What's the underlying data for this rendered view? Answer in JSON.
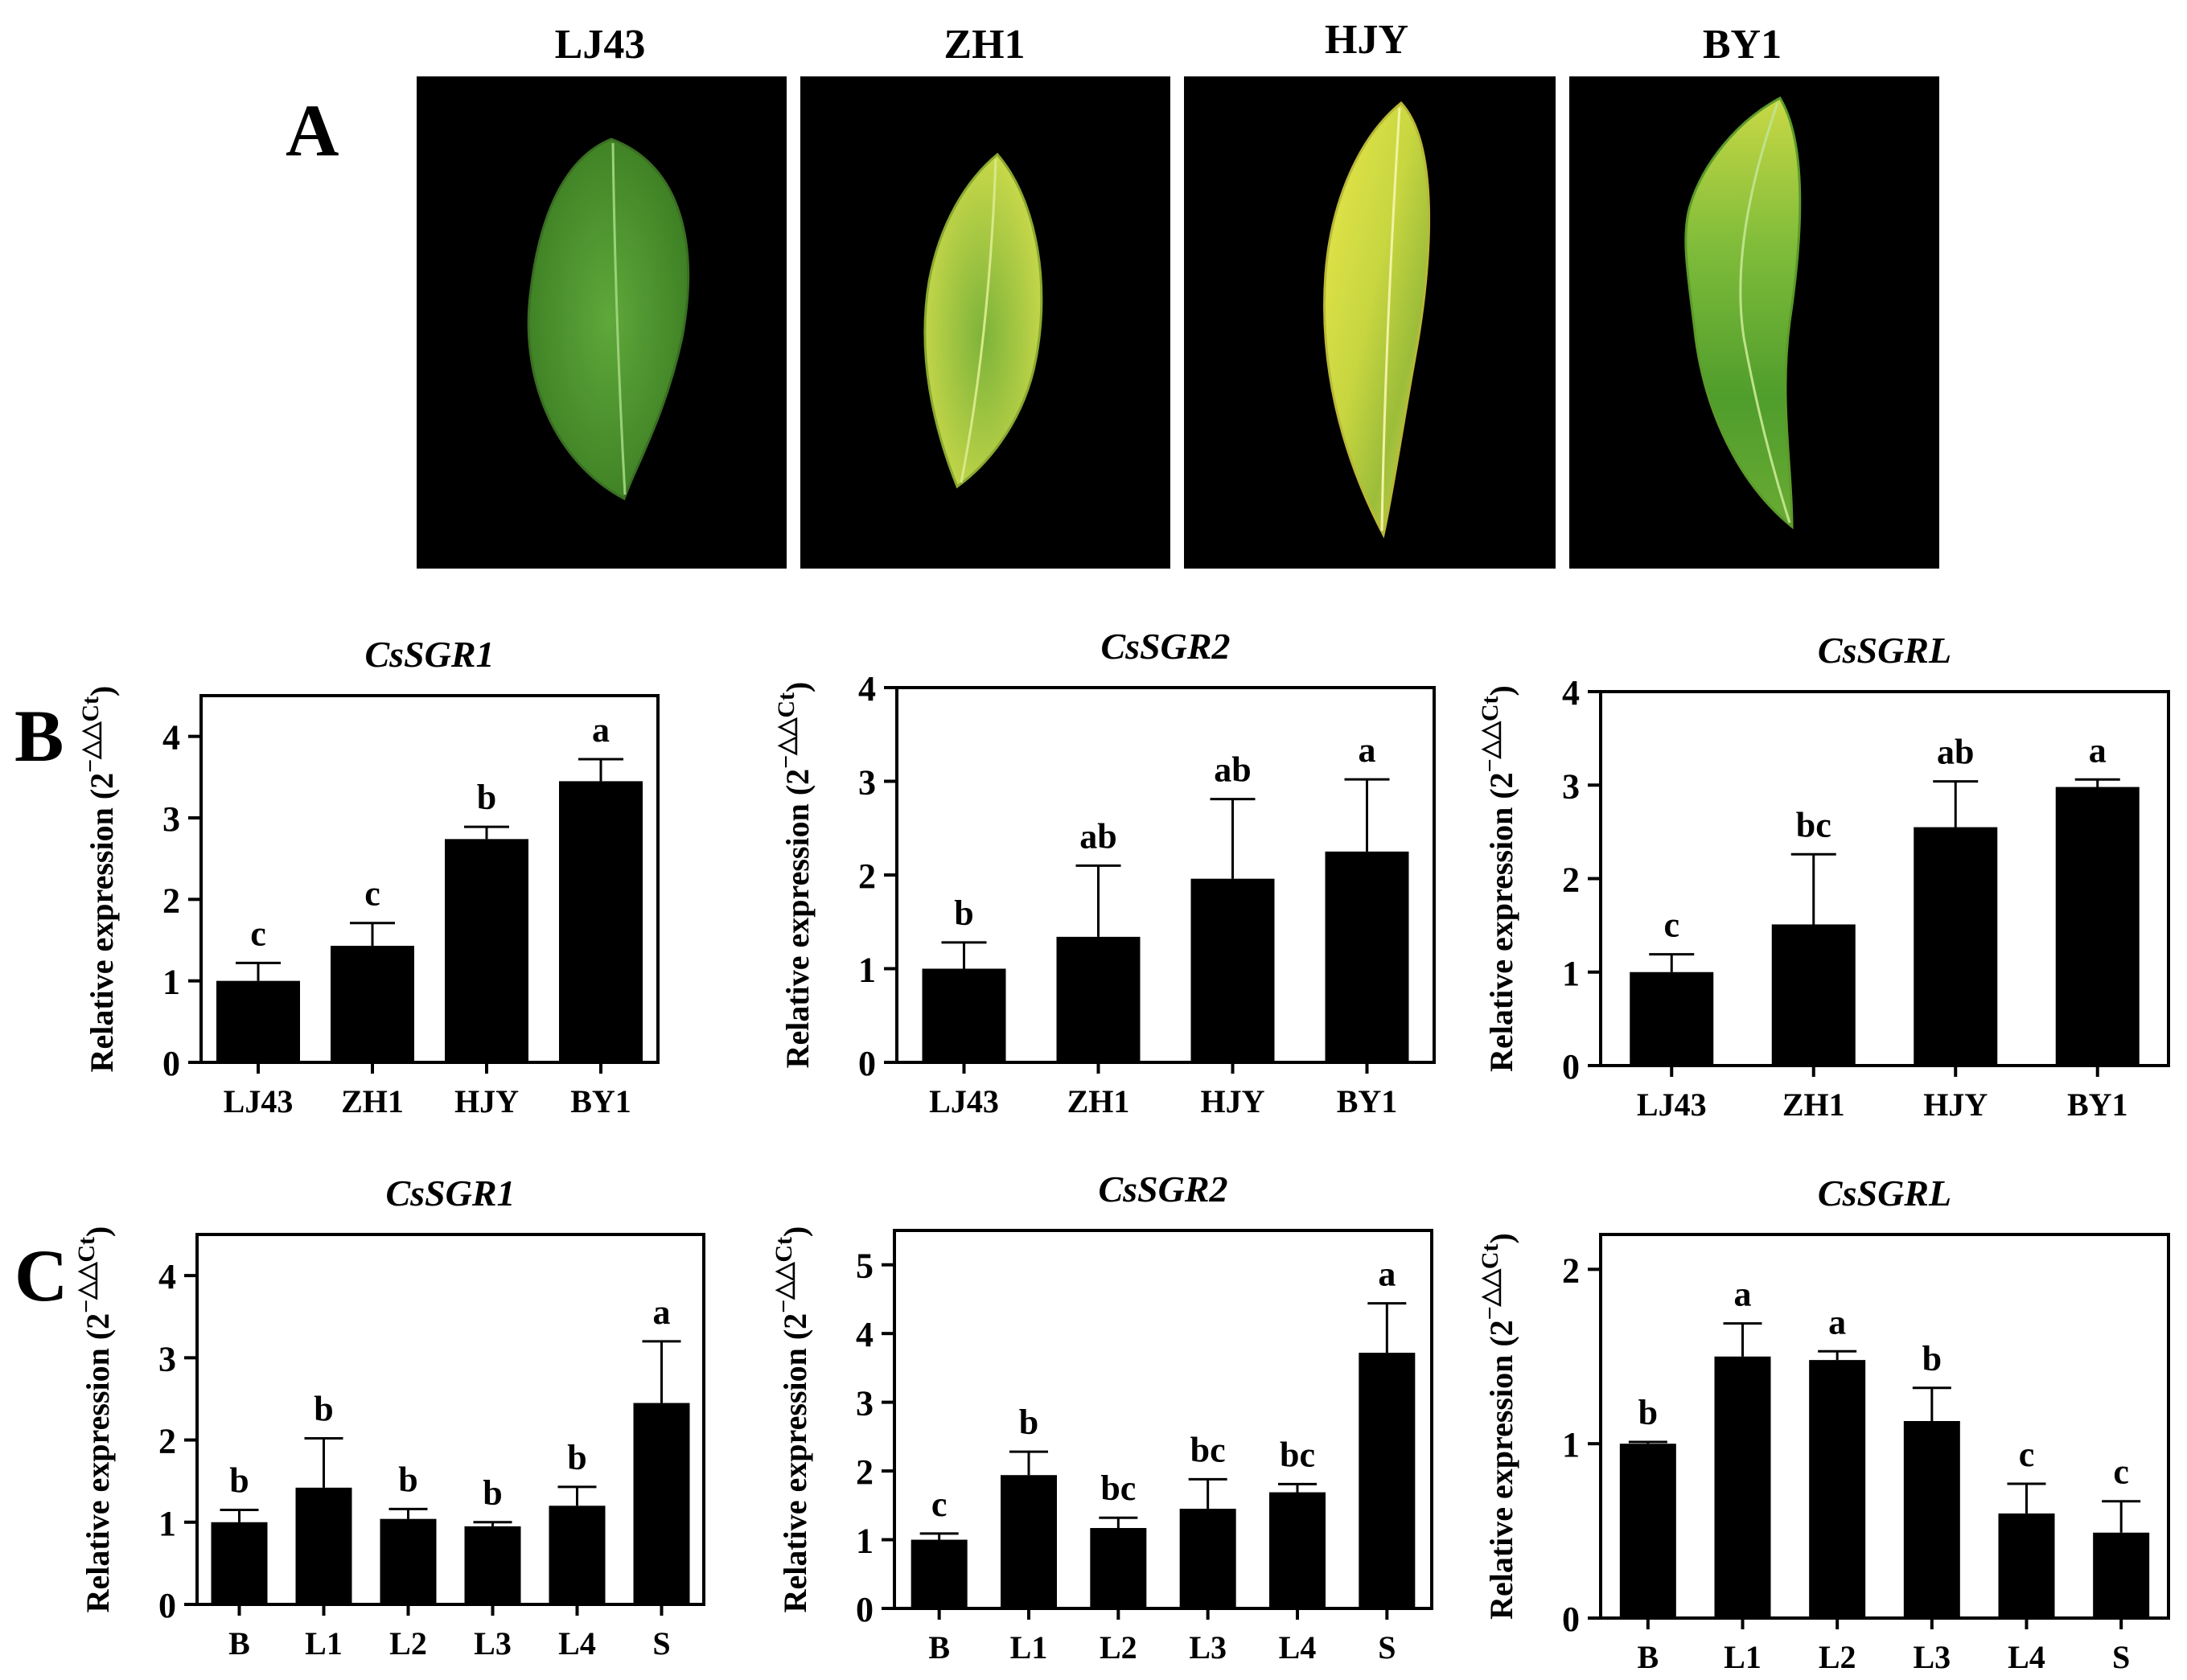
{
  "panel_letters": {
    "a": "A",
    "b": "B",
    "c": "C"
  },
  "panel_a": {
    "photos": [
      {
        "label": "LJ43"
      },
      {
        "label": "ZH1"
      },
      {
        "label": "HJY"
      },
      {
        "label": "BY1"
      }
    ]
  },
  "colors": {
    "bar": "#000000",
    "photo_bg": "#000000",
    "background": "#ffffff",
    "leaf_green": "#4f9a2f",
    "leaf_yellow": "#d8dc3a"
  },
  "chart_data": [
    {
      "id": "B1",
      "type": "bar",
      "title": "CsSGR1",
      "ylabel": "Relative expression (2",
      "ylabel_sup": "−△△Ct",
      "categories": [
        "LJ43",
        "ZH1",
        "HJY",
        "BY1"
      ],
      "values": [
        1.0,
        1.43,
        2.74,
        3.45
      ],
      "errors": [
        0.22,
        0.28,
        0.15,
        0.27
      ],
      "letters": [
        "c",
        "c",
        "b",
        "a"
      ],
      "ylim": [
        0,
        4.5
      ],
      "yticks": [
        0,
        1,
        2,
        3,
        4
      ]
    },
    {
      "id": "B2",
      "type": "bar",
      "title": "CsSGR2",
      "ylabel": "Relative expression (2",
      "ylabel_sup": "−△△Ct",
      "categories": [
        "LJ43",
        "ZH1",
        "HJY",
        "BY1"
      ],
      "values": [
        1.0,
        1.34,
        1.96,
        2.25
      ],
      "errors": [
        0.28,
        0.76,
        0.85,
        0.77
      ],
      "letters": [
        "b",
        "ab",
        "ab",
        "a"
      ],
      "ylim": [
        0,
        4
      ],
      "yticks": [
        0,
        1,
        2,
        3,
        4
      ]
    },
    {
      "id": "B3",
      "type": "bar",
      "title": "CsSGRL",
      "ylabel": "Relative expression (2",
      "ylabel_sup": "−△△Ct",
      "categories": [
        "LJ43",
        "ZH1",
        "HJY",
        "BY1"
      ],
      "values": [
        1.0,
        1.51,
        2.55,
        2.98
      ],
      "errors": [
        0.19,
        0.75,
        0.49,
        0.08
      ],
      "letters": [
        "c",
        "bc",
        "ab",
        "a"
      ],
      "ylim": [
        0,
        4
      ],
      "yticks": [
        0,
        1,
        2,
        3,
        4
      ]
    },
    {
      "id": "C1",
      "type": "bar",
      "title": "CsSGR1",
      "ylabel": "Relative expression (2",
      "ylabel_sup": "−△△Ct",
      "categories": [
        "B",
        "L1",
        "L2",
        "L3",
        "L4",
        "S"
      ],
      "values": [
        1.0,
        1.42,
        1.04,
        0.95,
        1.2,
        2.45
      ],
      "errors": [
        0.15,
        0.6,
        0.12,
        0.05,
        0.23,
        0.75
      ],
      "letters": [
        "b",
        "b",
        "b",
        "b",
        "b",
        "a"
      ],
      "ylim": [
        0,
        4.5
      ],
      "yticks": [
        0,
        1,
        2,
        3,
        4
      ]
    },
    {
      "id": "C2",
      "type": "bar",
      "title": "CsSGR2",
      "ylabel": "Relative expression (2",
      "ylabel_sup": "−△△Ct",
      "categories": [
        "B",
        "L1",
        "L2",
        "L3",
        "L4",
        "S"
      ],
      "values": [
        1.0,
        1.94,
        1.17,
        1.45,
        1.69,
        3.72
      ],
      "errors": [
        0.09,
        0.34,
        0.15,
        0.43,
        0.12,
        0.72
      ],
      "letters": [
        "c",
        "b",
        "bc",
        "bc",
        "bc",
        "a"
      ],
      "ylim": [
        0,
        5.5
      ],
      "yticks": [
        0,
        1,
        2,
        3,
        4,
        5
      ]
    },
    {
      "id": "C3",
      "type": "bar",
      "title": "CsSGRL",
      "ylabel": "Relative expression (2",
      "ylabel_sup": "−△△Ct",
      "categories": [
        "B",
        "L1",
        "L2",
        "L3",
        "L4",
        "S"
      ],
      "values": [
        1.0,
        1.5,
        1.48,
        1.13,
        0.6,
        0.49
      ],
      "errors": [
        0.01,
        0.19,
        0.05,
        0.19,
        0.17,
        0.18
      ],
      "letters": [
        "b",
        "a",
        "a",
        "b",
        "c",
        "c"
      ],
      "ylim": [
        0,
        2.2
      ],
      "yticks": [
        0,
        1,
        2
      ]
    }
  ]
}
